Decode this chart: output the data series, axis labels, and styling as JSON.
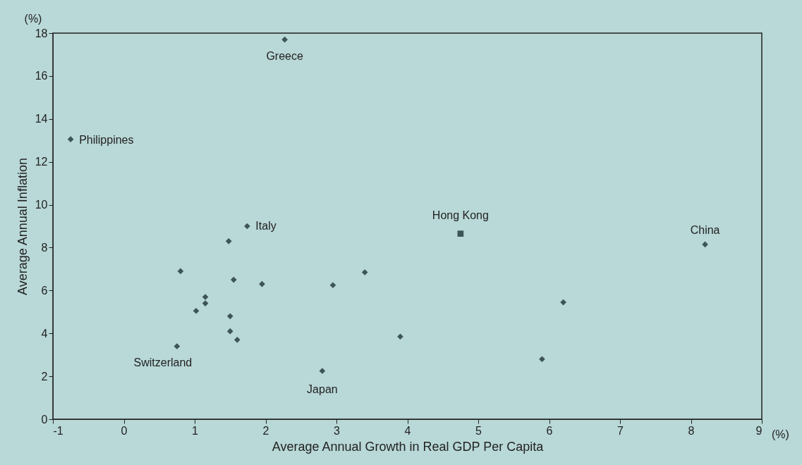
{
  "chart_data": {
    "type": "scatter",
    "xlabel": "Average Annual Growth in Real GDP Per Capita",
    "ylabel": "Average Annual Inflation",
    "xlim": [
      -1,
      9
    ],
    "xticks": [
      {
        "value": -1,
        "label": "-1"
      },
      0,
      1,
      2,
      3,
      4,
      5,
      6,
      7,
      8,
      9
    ],
    "ylim": [
      0,
      18
    ],
    "yticks": [
      0,
      2,
      4,
      6,
      8,
      10,
      12,
      14,
      16,
      18
    ],
    "grid": false,
    "series": [
      {
        "color": "#3d5555",
        "marker": "diamond",
        "x": [
          2.27,
          -0.75,
          1.74,
          8.2,
          0.75,
          2.8,
          0.8,
          1.48,
          1.15,
          1.15,
          1.02,
          1.55,
          1.5,
          1.5,
          1.6,
          1.95,
          2.95,
          3.4,
          3.9,
          5.9,
          6.2
        ],
        "values": [
          17.7,
          13.05,
          9.0,
          8.15,
          3.4,
          2.25,
          6.9,
          8.3,
          5.7,
          5.4,
          5.05,
          6.5,
          4.8,
          4.1,
          3.7,
          6.3,
          6.25,
          6.85,
          3.85,
          2.8,
          5.45
        ]
      },
      {
        "color": "#3d5555",
        "marker": "square",
        "x": [
          4.75
        ],
        "values": [
          8.65
        ]
      }
    ],
    "annotations": [
      {
        "text": "Greece",
        "x": 2.27,
        "y": 17.7
      },
      {
        "text": "Philippines",
        "x": -0.75,
        "y": 13.05
      },
      {
        "text": "Italy",
        "x": 1.74,
        "y": 9.0
      },
      {
        "text": "Hong Kong",
        "x": 4.75,
        "y": 8.65
      },
      {
        "text": "China",
        "x": 8.2,
        "y": 8.15
      },
      {
        "text": "Switzerland",
        "x": 0.75,
        "y": 3.4
      },
      {
        "text": "Japan",
        "x": 2.8,
        "y": 2.25
      },
      "(%)",
      "(%)"
    ]
  }
}
